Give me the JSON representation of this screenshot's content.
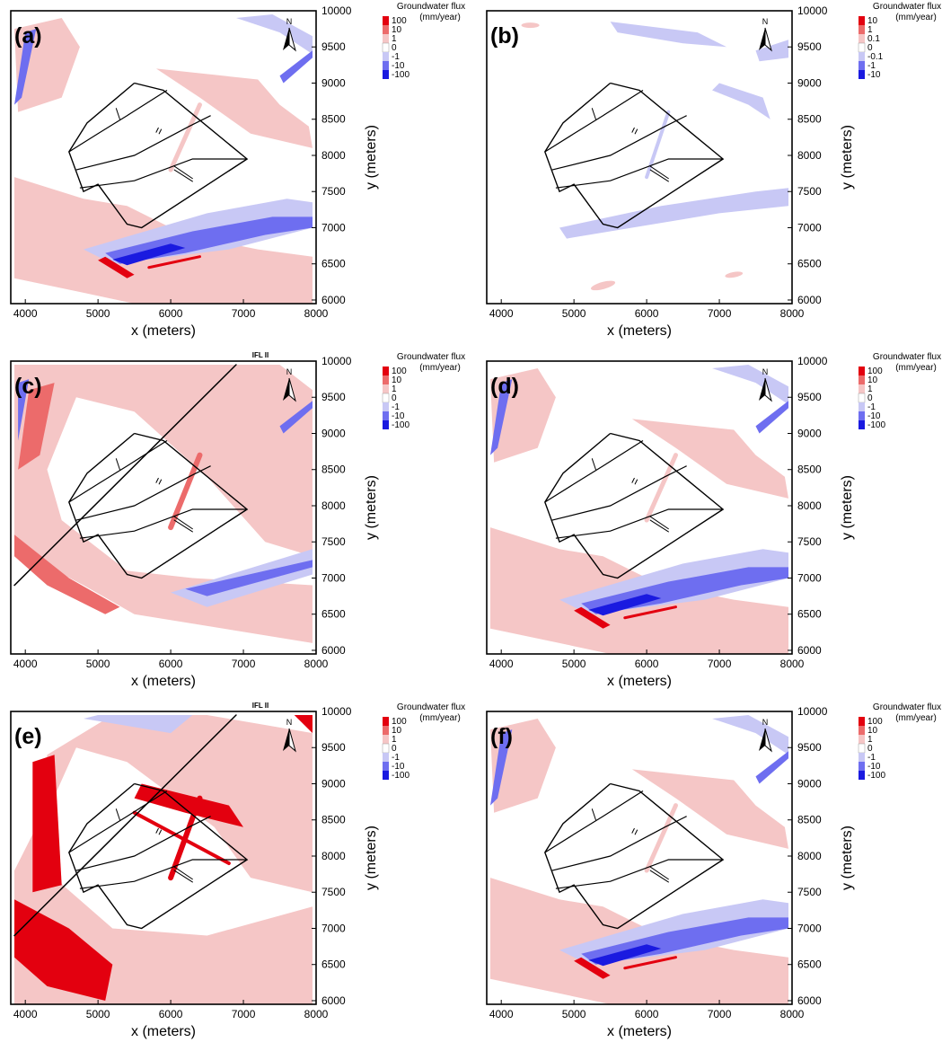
{
  "panels": [
    {
      "label": "(a)",
      "title": "",
      "legend_values": [
        "100",
        "10",
        "1",
        "0",
        "-1",
        "-10",
        "-100"
      ],
      "shading": "a"
    },
    {
      "label": "(b)",
      "title": "",
      "legend_values": [
        "10",
        "1",
        "0.1",
        "0",
        "-0.1",
        "-1",
        "-10"
      ],
      "shading": "b"
    },
    {
      "label": "(c)",
      "title": "IFL II",
      "legend_values": [
        "100",
        "10",
        "1",
        "0",
        "-1",
        "-10",
        "-100"
      ],
      "shading": "c"
    },
    {
      "label": "(d)",
      "title": "",
      "legend_values": [
        "100",
        "10",
        "1",
        "0",
        "-1",
        "-10",
        "-100"
      ],
      "shading": "a"
    },
    {
      "label": "(e)",
      "title": "IFL II",
      "legend_values": [
        "100",
        "10",
        "1",
        "0",
        "-1",
        "-10",
        "-100"
      ],
      "shading": "e"
    },
    {
      "label": "(f)",
      "title": "",
      "legend_values": [
        "100",
        "10",
        "1",
        "0",
        "-1",
        "-10",
        "-100"
      ],
      "shading": "a"
    }
  ],
  "axes": {
    "xlabel": "x (meters)",
    "ylabel": "y (meters)",
    "x_ticks": [
      "4000",
      "5000",
      "6000",
      "7000",
      "8000"
    ],
    "y_ticks": [
      "10000",
      "9500",
      "9000",
      "8500",
      "8000",
      "7500",
      "7000",
      "6500",
      "6000"
    ],
    "xlim": [
      3800,
      8000
    ],
    "ylim": [
      5950,
      10000
    ]
  },
  "legend": {
    "title_line1": "Groundwater flux",
    "title_line2": "(mm/year)",
    "colors": [
      "#e3000f",
      "#ec6b6b",
      "#f5c6c6",
      "#ffffff",
      "#c8c8f5",
      "#6e6ef0",
      "#1a1ae0"
    ]
  },
  "north_arrow": {
    "letter": "N"
  }
}
